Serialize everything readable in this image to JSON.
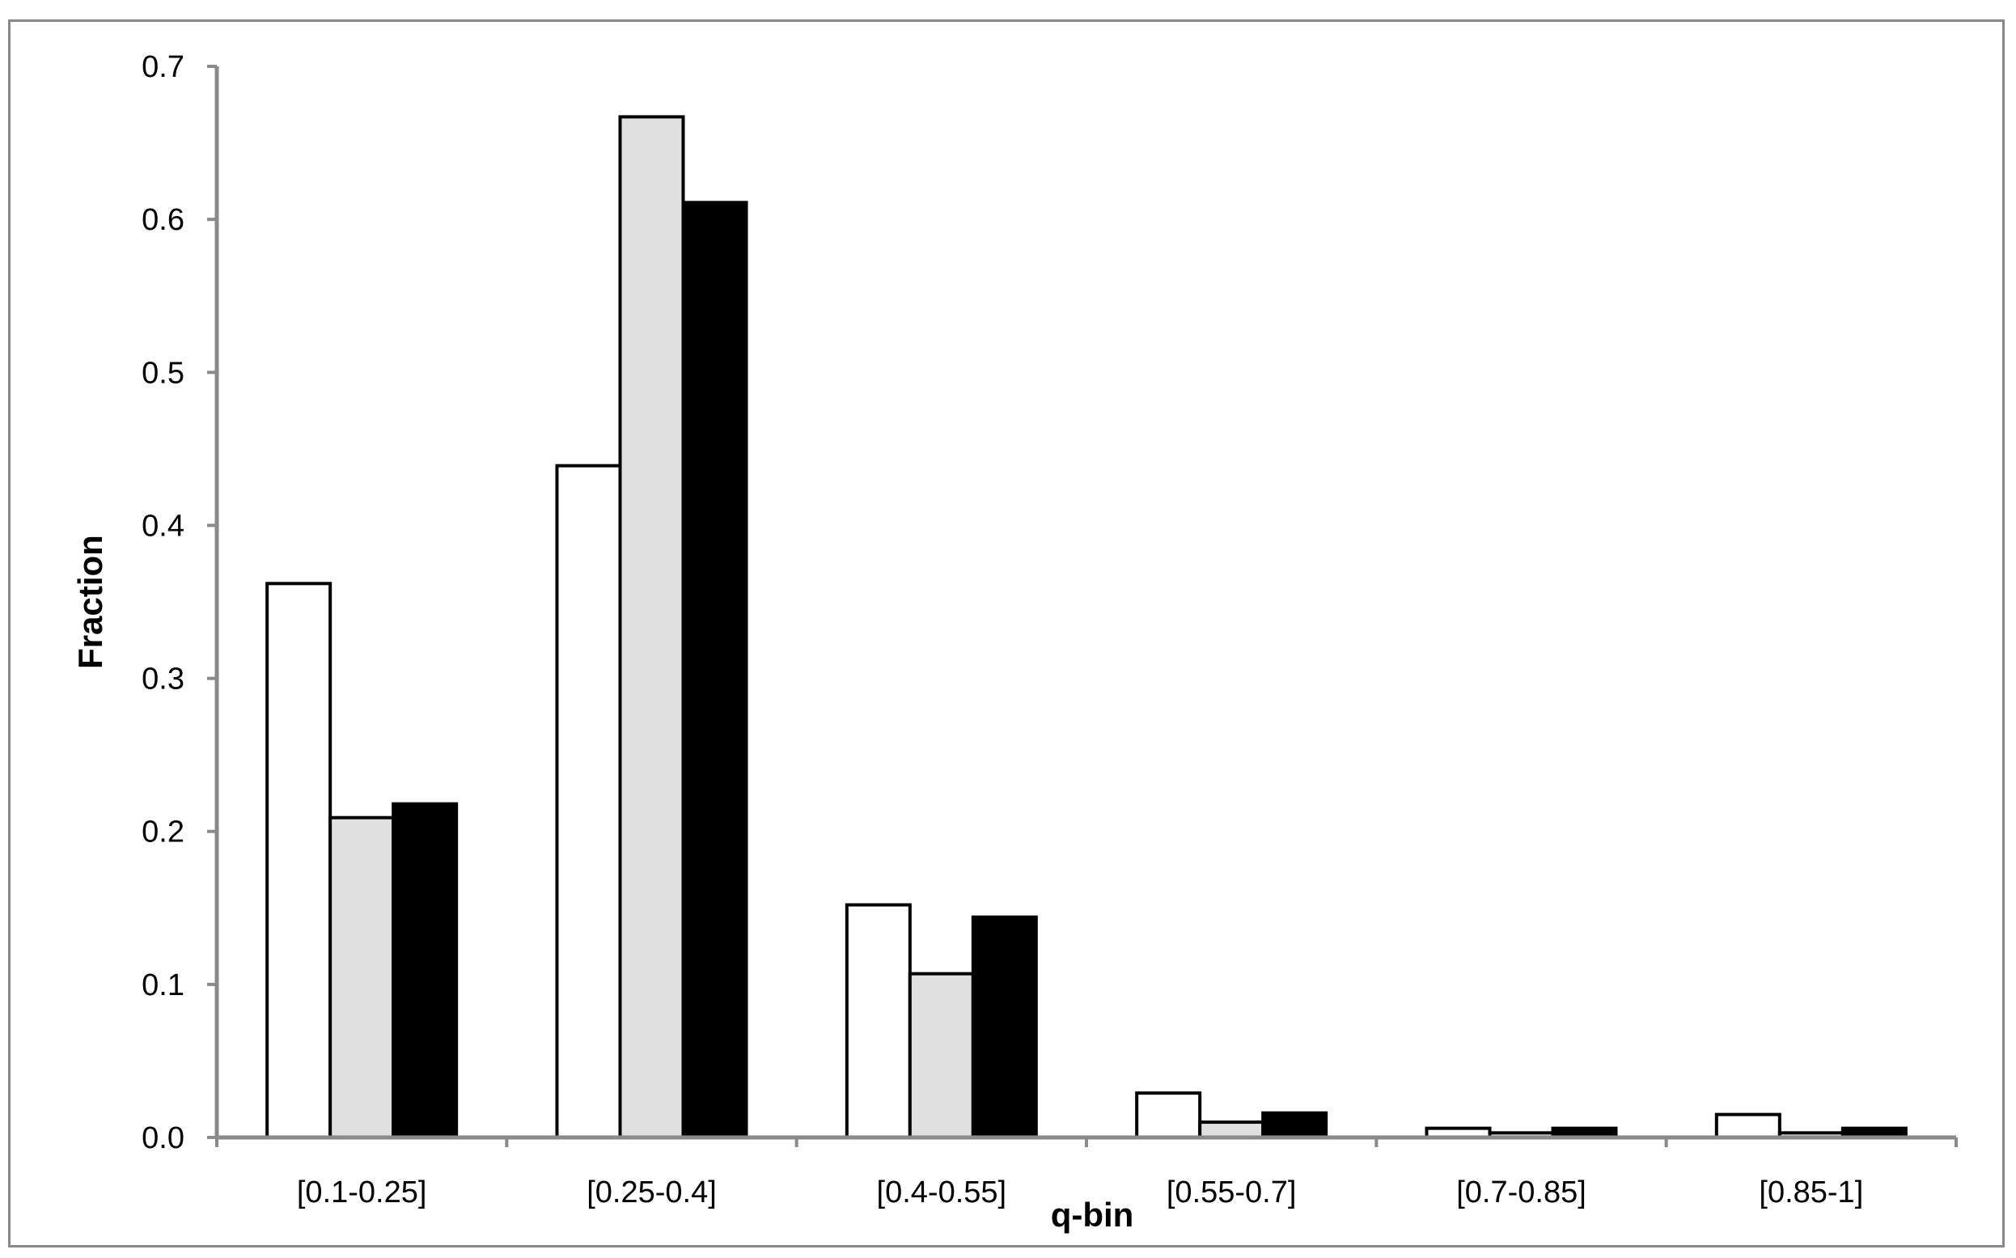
{
  "chart_data": {
    "type": "bar",
    "title": "",
    "xlabel": "q-bin",
    "ylabel": "Fraction",
    "categories": [
      "[0.1-0.25]",
      "[0.25-0.4]",
      "[0.4-0.55]",
      "[0.55-0.7]",
      "[0.7-0.85]",
      "[0.85-1]"
    ],
    "series": [
      {
        "color": "#ffffff",
        "values": [
          0.362,
          0.439,
          0.152,
          0.029,
          0.006,
          0.015
        ]
      },
      {
        "color": "#e0e0e0",
        "values": [
          0.209,
          0.667,
          0.107,
          0.01,
          0.003,
          0.003
        ]
      },
      {
        "color": "#000000",
        "values": [
          0.218,
          0.611,
          0.144,
          0.016,
          0.006,
          0.006
        ]
      }
    ],
    "ylim": [
      0,
      0.7
    ],
    "yticks": [
      "0.0",
      "0.1",
      "0.2",
      "0.3",
      "0.4",
      "0.5",
      "0.6",
      "0.7"
    ],
    "grid": false,
    "legend": "none",
    "axis_color": "#8a8a8a"
  }
}
